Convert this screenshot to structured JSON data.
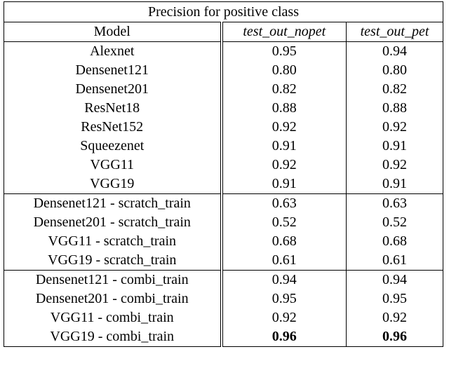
{
  "table": {
    "title": "Precision for positive class",
    "header": [
      "Model",
      "test_out_nopet",
      "test_out_pet"
    ],
    "groups": [
      [
        {
          "model": "Alexnet",
          "values": [
            "0.95",
            "0.94"
          ]
        },
        {
          "model": "Densenet121",
          "values": [
            "0.80",
            "0.80"
          ]
        },
        {
          "model": "Densenet201",
          "values": [
            "0.82",
            "0.82"
          ]
        },
        {
          "model": "ResNet18",
          "values": [
            "0.88",
            "0.88"
          ]
        },
        {
          "model": "ResNet152",
          "values": [
            "0.92",
            "0.92"
          ]
        },
        {
          "model": "Squeezenet",
          "values": [
            "0.91",
            "0.91"
          ]
        },
        {
          "model": "VGG11",
          "values": [
            "0.92",
            "0.92"
          ]
        },
        {
          "model": "VGG19",
          "values": [
            "0.91",
            "0.91"
          ]
        }
      ],
      [
        {
          "model": "Densenet121 - scratch_train",
          "values": [
            "0.63",
            "0.63"
          ]
        },
        {
          "model": "Densenet201 - scratch_train",
          "values": [
            "0.52",
            "0.52"
          ]
        },
        {
          "model": "VGG11 - scratch_train",
          "values": [
            "0.68",
            "0.68"
          ]
        },
        {
          "model": "VGG19 - scratch_train",
          "values": [
            "0.61",
            "0.61"
          ]
        }
      ],
      [
        {
          "model": "Densenet121 - combi_train",
          "values": [
            "0.94",
            "0.94"
          ]
        },
        {
          "model": "Densenet201 - combi_train",
          "values": [
            "0.95",
            "0.95"
          ]
        },
        {
          "model": "VGG11 - combi_train",
          "values": [
            "0.92",
            "0.92"
          ]
        },
        {
          "model": "VGG19 - combi_train",
          "values": [
            "0.96",
            "0.96"
          ],
          "bold": true
        }
      ]
    ]
  }
}
